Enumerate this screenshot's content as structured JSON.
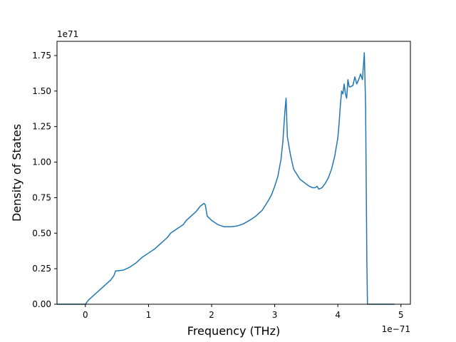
{
  "chart_data": {
    "type": "line",
    "title": "",
    "xlabel": "Frequency (THz)",
    "ylabel": "Density of States",
    "x_offset_text": "1e−71",
    "y_offset_text": "1e71",
    "xlim": [
      -0.45,
      5.15
    ],
    "ylim": [
      0.0,
      1.85
    ],
    "x_ticks": [
      0,
      1,
      2,
      3,
      4,
      5
    ],
    "x_tick_labels": [
      "0",
      "1",
      "2",
      "3",
      "4",
      "5"
    ],
    "y_ticks": [
      0.0,
      0.25,
      0.5,
      0.75,
      1.0,
      1.25,
      1.5,
      1.75
    ],
    "y_tick_labels": [
      "0.00",
      "0.25",
      "0.50",
      "0.75",
      "1.00",
      "1.25",
      "1.50",
      "1.75"
    ],
    "grid": false,
    "series": [
      {
        "color": "#1f77b4",
        "x": [
          -0.45,
          -0.3,
          -0.1,
          0.0,
          0.05,
          0.1,
          0.2,
          0.3,
          0.4,
          0.45,
          0.48,
          0.5,
          0.6,
          0.7,
          0.8,
          0.9,
          1.0,
          1.1,
          1.2,
          1.3,
          1.35,
          1.45,
          1.55,
          1.6,
          1.7,
          1.75,
          1.82,
          1.88,
          1.9,
          1.93,
          2.0,
          2.1,
          2.2,
          2.3,
          2.4,
          2.5,
          2.6,
          2.7,
          2.8,
          2.9,
          2.95,
          3.0,
          3.05,
          3.1,
          3.13,
          3.16,
          3.18,
          3.2,
          3.25,
          3.3,
          3.4,
          3.5,
          3.55,
          3.6,
          3.64,
          3.67,
          3.7,
          3.75,
          3.8,
          3.85,
          3.9,
          3.95,
          4.0,
          4.02,
          4.04,
          4.06,
          4.08,
          4.1,
          4.12,
          4.14,
          4.16,
          4.18,
          4.2,
          4.24,
          4.27,
          4.3,
          4.33,
          4.36,
          4.39,
          4.42,
          4.44,
          4.46,
          4.47,
          4.48,
          4.5,
          4.7,
          4.9
        ],
        "y": [
          0.0,
          0.0,
          0.0,
          0.0,
          0.03,
          0.05,
          0.09,
          0.13,
          0.17,
          0.2,
          0.235,
          0.235,
          0.24,
          0.26,
          0.29,
          0.33,
          0.36,
          0.39,
          0.43,
          0.47,
          0.5,
          0.53,
          0.56,
          0.59,
          0.63,
          0.65,
          0.69,
          0.71,
          0.7,
          0.62,
          0.59,
          0.56,
          0.545,
          0.545,
          0.55,
          0.565,
          0.59,
          0.62,
          0.66,
          0.73,
          0.77,
          0.83,
          0.9,
          1.02,
          1.15,
          1.35,
          1.45,
          1.18,
          1.05,
          0.95,
          0.88,
          0.845,
          0.83,
          0.82,
          0.82,
          0.83,
          0.81,
          0.82,
          0.85,
          0.89,
          0.95,
          1.04,
          1.17,
          1.27,
          1.4,
          1.5,
          1.48,
          1.55,
          1.48,
          1.45,
          1.58,
          1.53,
          1.53,
          1.54,
          1.6,
          1.55,
          1.58,
          1.62,
          1.58,
          1.77,
          1.4,
          0.3,
          0.0,
          0.0,
          0.0,
          0.0,
          0.0
        ]
      }
    ]
  }
}
